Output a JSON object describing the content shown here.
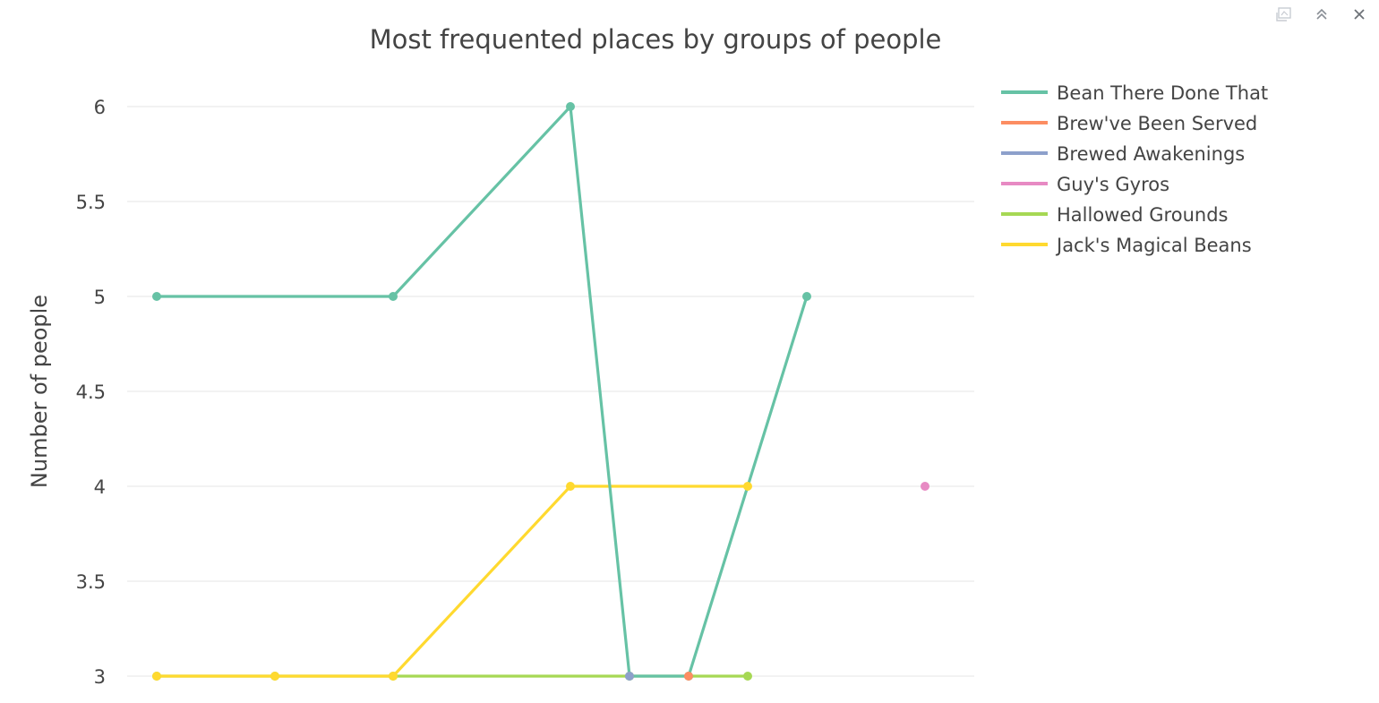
{
  "modebar": {
    "icons": [
      "download-plot-icon",
      "collapse-icon",
      "close-icon"
    ]
  },
  "chart_data": {
    "type": "line",
    "title": "Most frequented places by groups of people",
    "xlabel": "",
    "ylabel": "Number of people",
    "ylim": [
      2.95,
      6.1
    ],
    "yticks": [
      3,
      3.5,
      4,
      4.5,
      5,
      5.5,
      6
    ],
    "ytick_labels": [
      "3",
      "3.5",
      "4",
      "4.5",
      "5",
      "5.5",
      "6"
    ],
    "x_range": [
      0,
      14
    ],
    "grid": true,
    "legend_position": "top-right",
    "series": [
      {
        "name": "Bean There Done That",
        "color": "#66c2a5",
        "x": [
          0,
          4,
          7,
          8,
          9,
          11
        ],
        "y": [
          5,
          5,
          6,
          3,
          3,
          5
        ]
      },
      {
        "name": "Brew've Been Served",
        "color": "#fc8d62",
        "x": [
          9
        ],
        "y": [
          3
        ]
      },
      {
        "name": "Brewed Awakenings",
        "color": "#8da0cb",
        "x": [
          8
        ],
        "y": [
          3
        ]
      },
      {
        "name": "Guy's Gyros",
        "color": "#e78ac3",
        "x": [
          13
        ],
        "y": [
          4
        ]
      },
      {
        "name": "Hallowed Grounds",
        "color": "#a6d854",
        "x": [
          0,
          2,
          4,
          8,
          10
        ],
        "y": [
          3,
          3,
          3,
          3,
          3
        ]
      },
      {
        "name": "Jack's Magical Beans",
        "color": "#ffd92f",
        "x": [
          0,
          2,
          4,
          7,
          10
        ],
        "y": [
          3,
          3,
          3,
          4,
          4
        ]
      }
    ]
  }
}
